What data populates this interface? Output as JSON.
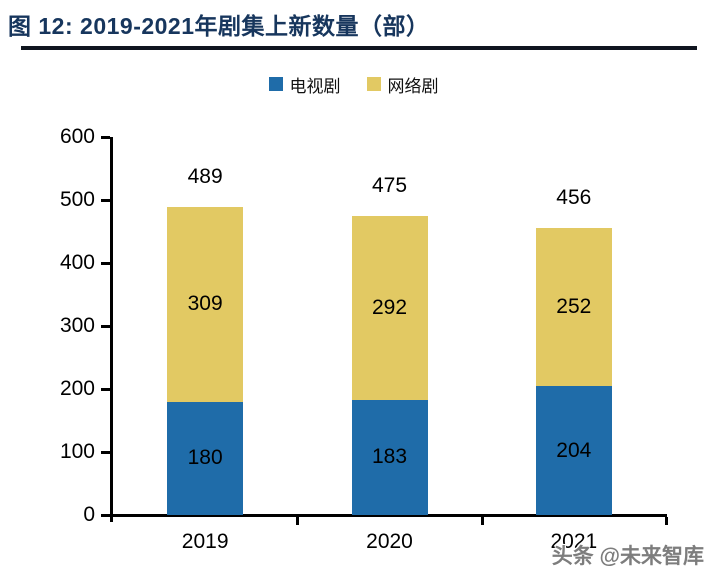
{
  "title": {
    "text": "图 12: 2019-2021年剧集上新数量（部）"
  },
  "legend": [
    {
      "label": "电视剧",
      "color": "#1F6CA9"
    },
    {
      "label": "网络剧",
      "color": "#E2C963"
    }
  ],
  "watermark": {
    "text": "头条 @未来智库"
  },
  "colors": {
    "title": "#17365D",
    "axis": "#000000",
    "tv_blue": "#1F6CA9",
    "web_yellow": "#E2C963",
    "watermark_grey": "#7D7D7D"
  },
  "chart_data": {
    "type": "bar",
    "stacked": true,
    "title": "2019-2021年剧集上新数量（部）",
    "categories": [
      "2019",
      "2020",
      "2021"
    ],
    "series": [
      {
        "name": "电视剧",
        "color": "#1F6CA9",
        "values": [
          180,
          183,
          204
        ]
      },
      {
        "name": "网络剧",
        "color": "#E2C963",
        "values": [
          309,
          292,
          252
        ]
      }
    ],
    "totals": [
      489,
      475,
      456
    ],
    "xlabel": "",
    "ylabel": "",
    "ylim": [
      0,
      600
    ],
    "ytick_step": 100,
    "yticks": [
      0,
      100,
      200,
      300,
      400,
      500,
      600
    ],
    "grid": false,
    "legend_position": "top",
    "value_labels": "inside-segments-and-total-above"
  }
}
